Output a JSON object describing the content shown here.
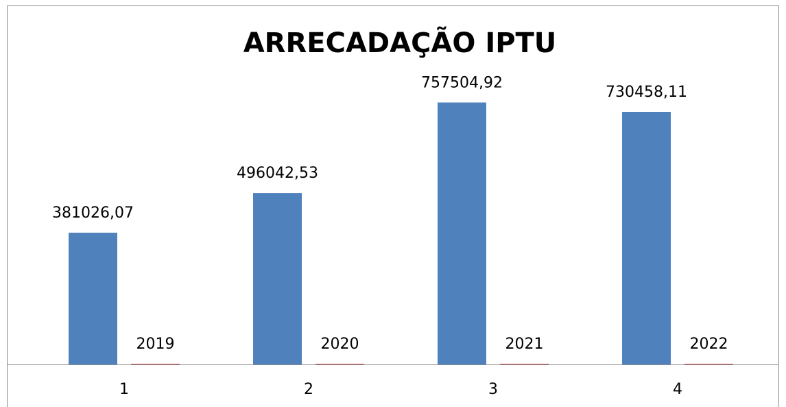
{
  "chart_data": {
    "type": "bar",
    "title": "ARRECADAÇÃO IPTU",
    "categories": [
      "1",
      "2",
      "3",
      "4"
    ],
    "series": [
      {
        "color": "#4f81bd",
        "values": [
          381026.07,
          496042.53,
          757504.92,
          730458.11
        ],
        "value_labels": [
          "381026,07",
          "496042,53",
          "757504,92",
          "730458,11"
        ]
      },
      {
        "color": "#c0504d",
        "values": [
          2019,
          2020,
          2021,
          2022
        ]
      }
    ],
    "ylim": [
      0,
      800000
    ]
  }
}
